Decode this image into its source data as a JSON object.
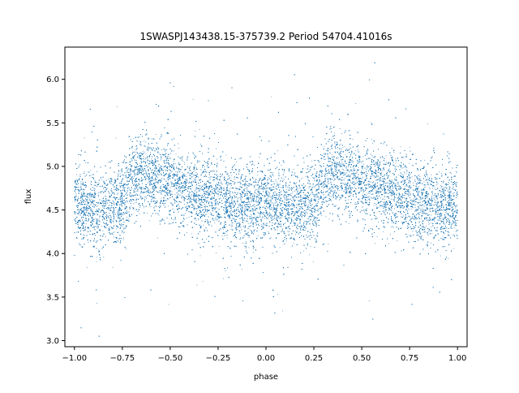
{
  "chart_data": {
    "type": "scatter",
    "title": "1SWASPJ143438.15-375739.2 Period 54704.41016s",
    "xlabel": "phase",
    "ylabel": "flux",
    "xlim": [
      -1.05,
      1.05
    ],
    "ylim": [
      2.93,
      6.37
    ],
    "x_ticks": [
      -1.0,
      -0.75,
      -0.5,
      -0.25,
      0.0,
      0.25,
      0.5,
      0.75,
      1.0
    ],
    "x_tick_labels": [
      "−1.00",
      "−0.75",
      "−0.50",
      "−0.25",
      "0.00",
      "0.25",
      "0.50",
      "0.75",
      "1.00"
    ],
    "y_ticks": [
      3.0,
      3.5,
      4.0,
      4.5,
      5.0,
      5.5,
      6.0
    ],
    "y_tick_labels": [
      "3.0",
      "3.5",
      "4.0",
      "4.5",
      "5.0",
      "5.5",
      "6.0"
    ],
    "grid": false,
    "legend": "none",
    "marker_color": "#1f77b4",
    "phase_folded_profile": {
      "phase": [
        0.0,
        0.1,
        0.2,
        0.25,
        0.3,
        0.35,
        0.4,
        0.5,
        0.6,
        0.7,
        0.8,
        0.9,
        1.0
      ],
      "mean_flux": [
        4.57,
        4.52,
        4.52,
        4.6,
        4.85,
        4.97,
        4.9,
        4.8,
        4.72,
        4.66,
        4.58,
        4.56,
        4.57
      ]
    },
    "scatter_sigma": 0.22,
    "n_points": 42000
  }
}
